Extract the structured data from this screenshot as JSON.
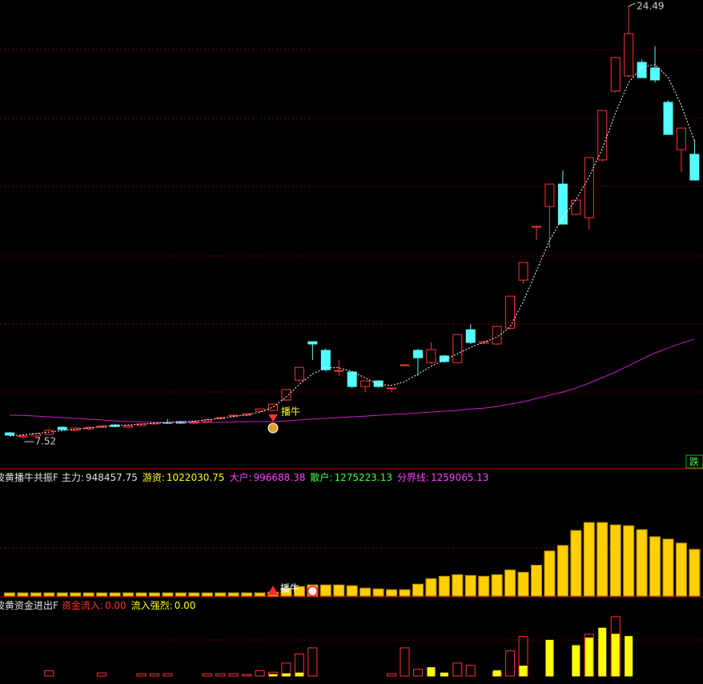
{
  "chart_data": [
    {
      "type": "candlestick",
      "open": [
        7.74,
        7.58,
        7.62,
        7.68,
        7.96,
        7.84,
        7.9,
        7.96,
        8.05,
        7.96,
        8.02,
        8.09,
        8.15,
        8.18,
        8.12,
        8.18,
        8.31,
        8.4,
        8.43,
        8.59,
        8.62,
        9.03,
        9.81,
        11.32,
        10.98,
        10.19,
        10.13,
        9.56,
        9.78,
        9.47,
        10.41,
        10.98,
        10.5,
        10.76,
        10.5,
        11.79,
        11.26,
        11.23,
        11.85,
        13.74,
        15.85,
        16.63,
        17.51,
        16.32,
        16.19,
        18.46,
        21.16,
        21.76,
        22.29,
        22.07,
        20.72,
        18.86,
        18.68
      ],
      "high": [
        7.77,
        7.68,
        7.74,
        7.9,
        8.0,
        7.96,
        7.99,
        8.05,
        8.09,
        8.05,
        8.12,
        8.18,
        8.28,
        8.21,
        8.21,
        8.31,
        8.37,
        8.46,
        8.52,
        8.71,
        8.87,
        9.44,
        10.31,
        11.32,
        11.05,
        10.6,
        10.16,
        9.78,
        9.81,
        9.5,
        10.44,
        11.05,
        11.29,
        10.8,
        11.6,
        12.01,
        11.35,
        11.92,
        13.11,
        14.43,
        15.85,
        17.51,
        18.05,
        16.88,
        18.55,
        20.4,
        22.48,
        24.49,
        22.4,
        22.92,
        20.8,
        19.71,
        19.24
      ],
      "low": [
        7.62,
        7.52,
        7.58,
        7.65,
        7.84,
        7.8,
        7.84,
        7.93,
        7.96,
        7.93,
        7.99,
        8.05,
        8.09,
        8.09,
        8.09,
        8.15,
        8.25,
        8.37,
        8.4,
        8.55,
        8.59,
        9.0,
        9.75,
        10.6,
        10.15,
        9.97,
        9.5,
        9.34,
        9.5,
        9.34,
        10.38,
        9.97,
        10.45,
        10.5,
        10.47,
        11.23,
        11.23,
        11.2,
        11.8,
        13.6,
        15.31,
        15.0,
        15.94,
        16.3,
        15.72,
        18.4,
        21.1,
        21.7,
        21.69,
        21.5,
        19.46,
        17.98,
        17.67
      ],
      "close": [
        7.65,
        7.62,
        7.71,
        7.84,
        7.87,
        7.93,
        7.96,
        8.02,
        7.99,
        8.02,
        8.09,
        8.15,
        8.12,
        8.12,
        8.18,
        8.25,
        8.34,
        8.43,
        8.49,
        8.68,
        8.87,
        9.44,
        10.31,
        11.23,
        10.22,
        10.19,
        9.56,
        9.78,
        9.56,
        9.5,
        10.41,
        10.69,
        11.01,
        10.54,
        11.6,
        11.29,
        11.32,
        11.92,
        13.11,
        14.43,
        15.85,
        17.51,
        15.94,
        16.88,
        18.55,
        20.4,
        22.48,
        23.42,
        21.69,
        21.6,
        19.46,
        19.71,
        17.67
      ],
      "series": [
        {
          "color": "#c81ec8",
          "values": [
            8.43,
            8.43,
            8.4,
            8.37,
            8.34,
            8.31,
            8.28,
            8.25,
            8.21,
            8.18,
            8.18,
            8.15,
            8.15,
            8.15,
            8.15,
            8.15,
            8.15,
            8.18,
            8.18,
            8.18,
            8.18,
            8.21,
            8.25,
            8.28,
            8.31,
            8.34,
            8.37,
            8.4,
            8.43,
            8.46,
            8.49,
            8.52,
            8.56,
            8.59,
            8.62,
            8.68,
            8.71,
            8.78,
            8.87,
            8.96,
            9.09,
            9.22,
            9.34,
            9.5,
            9.69,
            9.91,
            10.13,
            10.38,
            10.63,
            10.88,
            11.07,
            11.26,
            11.42
          ]
        },
        {
          "color": "#ffffff",
          "values": [
            7.62,
            7.66,
            7.71,
            7.77,
            7.83,
            7.88,
            7.93,
            7.98,
            8.02,
            8.05,
            8.08,
            8.12,
            8.15,
            8.17,
            8.2,
            8.25,
            8.31,
            8.38,
            8.45,
            8.55,
            8.75,
            9.15,
            9.65,
            10.05,
            10.3,
            10.3,
            10.15,
            9.9,
            9.65,
            9.6,
            9.75,
            10.05,
            10.35,
            10.6,
            10.85,
            11.1,
            11.3,
            11.5,
            11.9,
            12.9,
            14.1,
            15.3,
            16.2,
            16.9,
            17.8,
            18.9,
            20.3,
            21.5,
            22.1,
            22.2,
            21.7,
            20.6,
            19.2
          ]
        }
      ],
      "ylim": [
        6.36,
        24.74
      ],
      "up_color": "#ff3232",
      "down_color": "#54ffff",
      "annotations": [
        "播牛",
        "跌"
      ]
    },
    {
      "type": "bar",
      "title": "波黄播牛共振F",
      "legend_items": [
        {
          "label": "主力:",
          "value": 948457.75,
          "color": "#e0e0e0"
        },
        {
          "label": "游资:",
          "value": 1022030.75,
          "color": "#ffff00"
        },
        {
          "label": "大户:",
          "value": 996688.38,
          "color": "#ff40ff"
        },
        {
          "label": "散户:",
          "value": 1275223.13,
          "color": "#40ff40"
        },
        {
          "label": "分界线:",
          "value": 1259065.13,
          "color": "#ff40ff"
        }
      ],
      "values": [
        4,
        4,
        4,
        4,
        4,
        4,
        4,
        4,
        4,
        4,
        4,
        4,
        4,
        4,
        4,
        4,
        4,
        4,
        4,
        4,
        5,
        10,
        12,
        14,
        14,
        14,
        13,
        10,
        9,
        8,
        8,
        15,
        22,
        25,
        27,
        26,
        25,
        27,
        33,
        30,
        39,
        57,
        64,
        83,
        93,
        93,
        90,
        89,
        84,
        75,
        72,
        67,
        59
      ],
      "color": "#ffd000",
      "ylim": [
        0,
        160
      ],
      "annotation": "播牛"
    },
    {
      "type": "bar",
      "title": "波黄资金进出F",
      "series": [
        {
          "name": "资金流入:",
          "color": "#ff3232",
          "current": {
            "value": 0,
            "label": "0.00"
          },
          "values": [
            0,
            0,
            0,
            7,
            0,
            0,
            0,
            4,
            0,
            0,
            3,
            3,
            3,
            0,
            0,
            3,
            3,
            3,
            2,
            7,
            5,
            17,
            29,
            37,
            0,
            0,
            0,
            0,
            0,
            3,
            37,
            9,
            0,
            0,
            17,
            14,
            0,
            5,
            33,
            52,
            0,
            0,
            0,
            0,
            55,
            0,
            78,
            0,
            0,
            0,
            0,
            0,
            0
          ]
        },
        {
          "name": "流入强烈:",
          "color": "#ffff00",
          "current": {
            "value": 0,
            "label": "0.00"
          },
          "values": [
            0,
            0,
            0,
            0,
            0,
            0,
            0,
            0,
            0,
            0,
            0,
            0,
            0,
            0,
            0,
            0,
            0,
            0,
            0,
            0,
            2,
            3,
            4,
            0,
            0,
            0,
            0,
            0,
            0,
            0,
            0,
            0,
            11,
            4,
            0,
            0,
            0,
            7,
            0,
            13,
            0,
            47,
            0,
            40,
            50,
            63,
            55,
            52,
            0,
            0,
            0,
            0,
            0
          ]
        }
      ],
      "ylim": [
        0,
        100
      ]
    }
  ]
}
